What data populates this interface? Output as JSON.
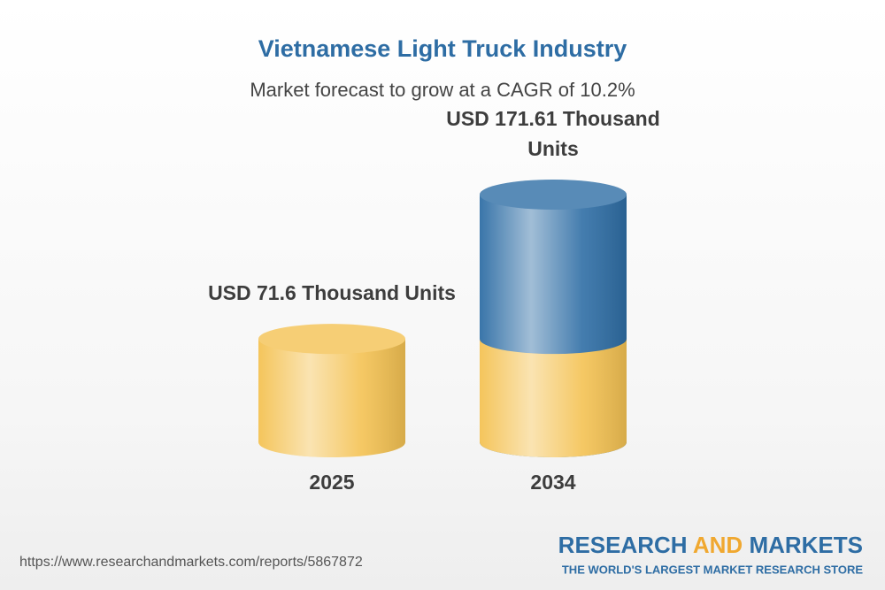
{
  "chart_data": {
    "type": "bar",
    "title": "Vietnamese Light Truck Industry",
    "subtitle": "Market forecast to grow at a CAGR of 10.2%",
    "categories": [
      "2025",
      "2034"
    ],
    "values": [
      71.6,
      171.61
    ],
    "value_labels": [
      "USD 71.6 Thousand Units",
      "USD 171.61 Thousand Units"
    ],
    "colors": [
      "#f4c253",
      "#2f6ea5"
    ]
  },
  "source": "https://www.researchandmarkets.com/reports/5867872",
  "brand": {
    "name_parts": [
      "RESEARCH",
      "AND",
      "MARKETS"
    ],
    "tagline": "THE WORLD'S LARGEST MARKET RESEARCH STORE"
  }
}
